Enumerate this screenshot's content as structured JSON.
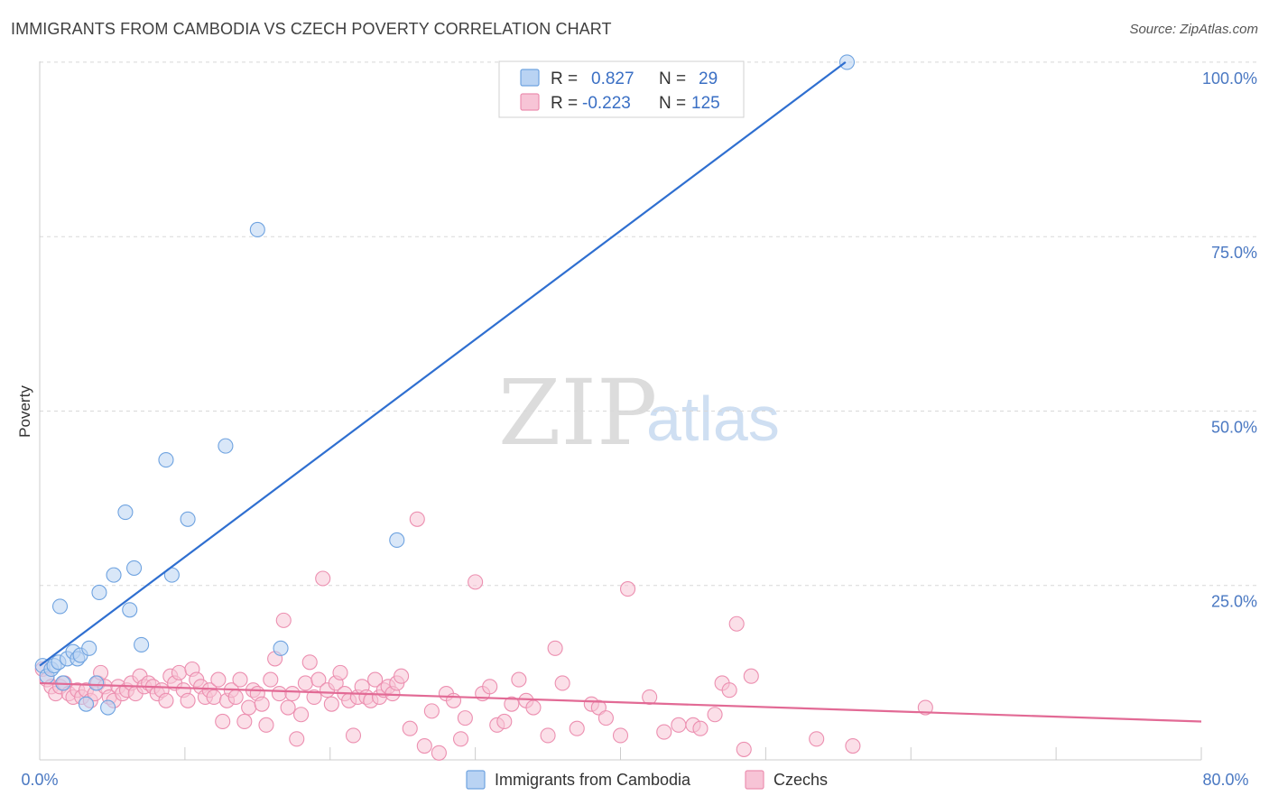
{
  "header": {
    "title": "IMMIGRANTS FROM CAMBODIA VS CZECH POVERTY CORRELATION CHART",
    "source": "Source: ZipAtlas.com"
  },
  "watermark": {
    "zip": "ZIP",
    "atlas": "atlas"
  },
  "colors": {
    "blue": "#6fa3e0",
    "blue_fill": "#b9d3f3",
    "blue_line": "#2f6fd0",
    "pink": "#ec8fb0",
    "pink_fill": "#f7c4d6",
    "pink_line": "#e26a95",
    "grid": "#d8d8d8",
    "tick_label": "#4a78c2"
  },
  "legend": {
    "rows": [
      {
        "r_label": "R =",
        "r_value": "0.827",
        "n_label": "N =",
        "n_value": "29"
      },
      {
        "r_label": "R =",
        "r_value": "-0.223",
        "n_label": "N =",
        "n_value": "125"
      }
    ]
  },
  "bottom_legend": {
    "items": [
      {
        "label": "Immigrants from Cambodia"
      },
      {
        "label": "Czechs"
      }
    ]
  },
  "chart_data": {
    "type": "scatter",
    "title": "IMMIGRANTS FROM CAMBODIA VS CZECH POVERTY CORRELATION CHART",
    "xlabel": "",
    "ylabel": "Poverty",
    "xlim": [
      0,
      80
    ],
    "ylim": [
      0,
      104
    ],
    "x_tick_labels": [
      "0.0%",
      "80.0%"
    ],
    "y_ticks": [
      25,
      50,
      75,
      100
    ],
    "y_tick_labels": [
      "25.0%",
      "50.0%",
      "75.0%",
      "100.0%"
    ],
    "grid": "horizontal-dashed",
    "series": [
      {
        "name": "Immigrants from Cambodia",
        "color": "blue",
        "R": 0.827,
        "N": 29,
        "trend": {
          "x": [
            0,
            55.5
          ],
          "y": [
            13.5,
            100
          ]
        },
        "points": [
          [
            0.2,
            13.5
          ],
          [
            0.5,
            12.0
          ],
          [
            0.8,
            13.0
          ],
          [
            1.0,
            13.5
          ],
          [
            1.3,
            14.0
          ],
          [
            1.6,
            11.0
          ],
          [
            1.9,
            14.5
          ],
          [
            2.3,
            15.5
          ],
          [
            2.6,
            14.5
          ],
          [
            2.8,
            15.0
          ],
          [
            3.4,
            16.0
          ],
          [
            3.2,
            8.0
          ],
          [
            3.9,
            11.0
          ],
          [
            4.7,
            7.5
          ],
          [
            1.4,
            22.0
          ],
          [
            4.1,
            24.0
          ],
          [
            5.1,
            26.5
          ],
          [
            5.9,
            35.5
          ],
          [
            6.2,
            21.5
          ],
          [
            6.5,
            27.5
          ],
          [
            7.0,
            16.5
          ],
          [
            8.7,
            43.0
          ],
          [
            9.1,
            26.5
          ],
          [
            10.2,
            34.5
          ],
          [
            12.8,
            45.0
          ],
          [
            15.0,
            76.0
          ],
          [
            16.6,
            16.0
          ],
          [
            24.6,
            31.5
          ],
          [
            55.6,
            100.0
          ]
        ]
      },
      {
        "name": "Czechs",
        "color": "pink",
        "R": -0.223,
        "N": 125,
        "trend": {
          "x": [
            0,
            80
          ],
          "y": [
            11.0,
            5.5
          ]
        },
        "points": [
          [
            0.2,
            13.0
          ],
          [
            0.5,
            11.5
          ],
          [
            0.8,
            10.5
          ],
          [
            1.1,
            9.5
          ],
          [
            1.4,
            10.5
          ],
          [
            1.7,
            11.0
          ],
          [
            2.0,
            9.5
          ],
          [
            2.3,
            9.0
          ],
          [
            2.6,
            10.0
          ],
          [
            2.9,
            9.0
          ],
          [
            3.2,
            10.0
          ],
          [
            3.5,
            8.5
          ],
          [
            3.8,
            9.5
          ],
          [
            4.0,
            11.0
          ],
          [
            4.2,
            12.5
          ],
          [
            4.5,
            10.5
          ],
          [
            4.8,
            9.0
          ],
          [
            5.1,
            8.5
          ],
          [
            5.4,
            10.5
          ],
          [
            5.7,
            9.5
          ],
          [
            6.0,
            10.0
          ],
          [
            6.3,
            11.0
          ],
          [
            6.6,
            9.5
          ],
          [
            6.9,
            12.0
          ],
          [
            7.2,
            10.5
          ],
          [
            7.5,
            11.0
          ],
          [
            7.8,
            10.5
          ],
          [
            8.1,
            9.5
          ],
          [
            8.4,
            10.0
          ],
          [
            8.7,
            8.5
          ],
          [
            9.0,
            12.0
          ],
          [
            9.3,
            11.0
          ],
          [
            9.6,
            12.5
          ],
          [
            9.9,
            10.0
          ],
          [
            10.2,
            8.5
          ],
          [
            10.5,
            13.0
          ],
          [
            10.8,
            11.5
          ],
          [
            11.1,
            10.5
          ],
          [
            11.4,
            9.0
          ],
          [
            11.7,
            10.0
          ],
          [
            12.0,
            9.0
          ],
          [
            12.3,
            11.5
          ],
          [
            12.6,
            5.5
          ],
          [
            12.9,
            8.5
          ],
          [
            13.2,
            10.0
          ],
          [
            13.5,
            9.0
          ],
          [
            13.8,
            11.5
          ],
          [
            14.1,
            5.5
          ],
          [
            14.4,
            7.5
          ],
          [
            14.7,
            10.0
          ],
          [
            15.0,
            9.5
          ],
          [
            15.3,
            8.0
          ],
          [
            15.6,
            5.0
          ],
          [
            15.9,
            11.5
          ],
          [
            16.2,
            14.5
          ],
          [
            16.5,
            9.5
          ],
          [
            16.8,
            20.0
          ],
          [
            17.1,
            7.5
          ],
          [
            17.4,
            9.5
          ],
          [
            17.7,
            3.0
          ],
          [
            18.0,
            6.5
          ],
          [
            18.3,
            11.0
          ],
          [
            18.6,
            14.0
          ],
          [
            18.9,
            9.0
          ],
          [
            19.2,
            11.5
          ],
          [
            19.5,
            26.0
          ],
          [
            19.8,
            10.0
          ],
          [
            20.1,
            8.0
          ],
          [
            20.4,
            11.0
          ],
          [
            20.7,
            12.5
          ],
          [
            21.0,
            9.5
          ],
          [
            21.3,
            8.5
          ],
          [
            21.6,
            3.5
          ],
          [
            21.9,
            9.0
          ],
          [
            22.2,
            10.5
          ],
          [
            22.5,
            9.0
          ],
          [
            22.8,
            8.5
          ],
          [
            23.1,
            11.5
          ],
          [
            23.4,
            9.0
          ],
          [
            23.7,
            10.0
          ],
          [
            24.0,
            10.5
          ],
          [
            24.3,
            9.5
          ],
          [
            24.6,
            11.0
          ],
          [
            24.9,
            12.0
          ],
          [
            25.5,
            4.5
          ],
          [
            26.0,
            34.5
          ],
          [
            26.5,
            2.0
          ],
          [
            27.0,
            7.0
          ],
          [
            27.5,
            1.0
          ],
          [
            28.0,
            9.5
          ],
          [
            28.5,
            8.5
          ],
          [
            29.0,
            3.0
          ],
          [
            29.3,
            6.0
          ],
          [
            30.0,
            25.5
          ],
          [
            30.5,
            9.5
          ],
          [
            31.0,
            10.5
          ],
          [
            31.5,
            5.0
          ],
          [
            32.0,
            5.5
          ],
          [
            32.5,
            8.0
          ],
          [
            33.0,
            11.5
          ],
          [
            33.5,
            8.5
          ],
          [
            34.0,
            7.5
          ],
          [
            35.0,
            3.5
          ],
          [
            35.5,
            16.0
          ],
          [
            36.0,
            11.0
          ],
          [
            37.0,
            4.5
          ],
          [
            38.0,
            8.0
          ],
          [
            38.5,
            7.5
          ],
          [
            39.0,
            6.0
          ],
          [
            40.0,
            3.5
          ],
          [
            40.5,
            24.5
          ],
          [
            42.0,
            9.0
          ],
          [
            43.0,
            4.0
          ],
          [
            44.0,
            5.0
          ],
          [
            45.0,
            5.0
          ],
          [
            45.5,
            4.5
          ],
          [
            46.5,
            6.5
          ],
          [
            47.0,
            11.0
          ],
          [
            47.5,
            10.0
          ],
          [
            48.0,
            19.5
          ],
          [
            48.5,
            1.5
          ],
          [
            49.0,
            12.0
          ],
          [
            53.5,
            3.0
          ],
          [
            56.0,
            2.0
          ],
          [
            61.0,
            7.5
          ]
        ]
      }
    ]
  }
}
